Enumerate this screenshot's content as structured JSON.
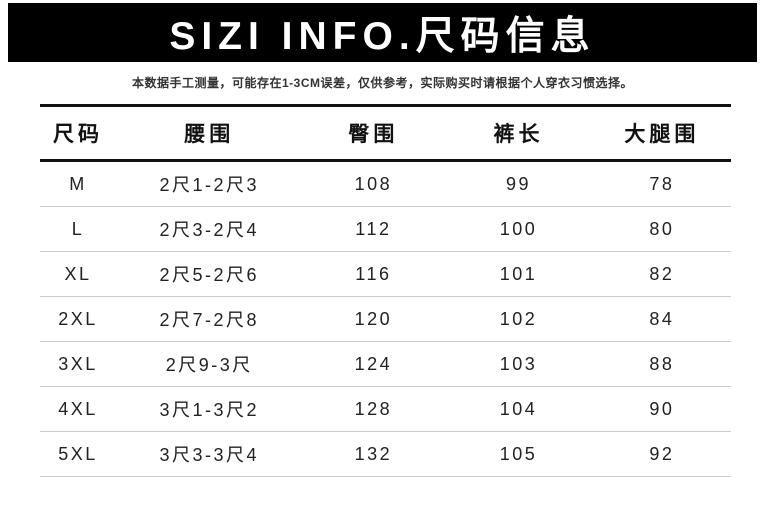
{
  "header": {
    "title": "SIZI INFO.尺码信息"
  },
  "note": "本数据手工测量，可能存在1-3CM误差，仅供参考，实际购买时请根据个人穿衣习惯选择。",
  "table": {
    "columns": [
      "尺码",
      "腰围",
      "臀围",
      "裤长",
      "大腿围"
    ],
    "rows": [
      [
        "M",
        "2尺1-2尺3",
        "108",
        "99",
        "78"
      ],
      [
        "L",
        "2尺3-2尺4",
        "112",
        "100",
        "80"
      ],
      [
        "XL",
        "2尺5-2尺6",
        "116",
        "101",
        "82"
      ],
      [
        "2XL",
        "2尺7-2尺8",
        "120",
        "102",
        "84"
      ],
      [
        "3XL",
        "2尺9-3尺",
        "124",
        "103",
        "88"
      ],
      [
        "4XL",
        "3尺1-3尺2",
        "128",
        "104",
        "90"
      ],
      [
        "5XL",
        "3尺3-3尺4",
        "132",
        "105",
        "92"
      ]
    ]
  },
  "colors": {
    "banner_bg": "#000000",
    "banner_text": "#ffffff",
    "thick_rule": "#111111",
    "row_divider": "#cccccc",
    "body_text": "#222222"
  }
}
